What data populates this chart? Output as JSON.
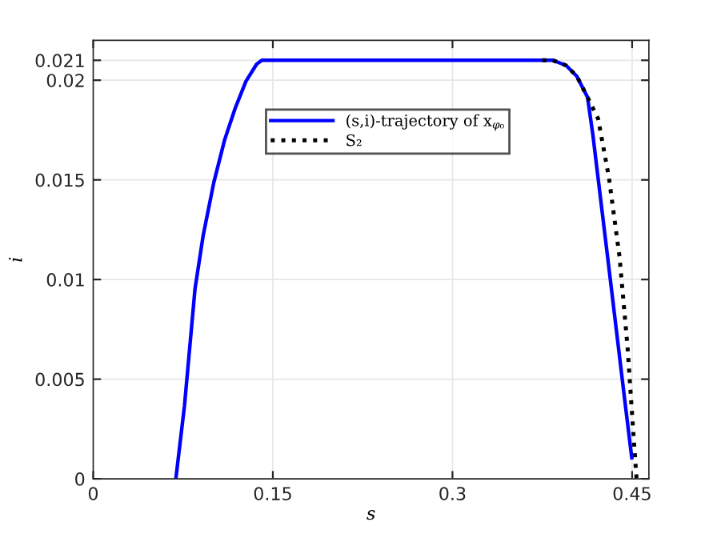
{
  "chart_data": {
    "type": "line",
    "xlabel": "s",
    "ylabel": "i",
    "series": [
      {
        "name": "(s,i)-trajectory of x$_{φ₀}$",
        "color": "#0000ff",
        "line_style": "solid",
        "x": [
          0.069,
          0.0762,
          0.085,
          0.0918,
          0.1007,
          0.1097,
          0.1186,
          0.1275,
          0.1364,
          0.1408,
          0.3838,
          0.3949,
          0.4038,
          0.4128,
          0.4172,
          0.4306,
          0.4439,
          0.4497
        ],
        "values": [
          0,
          0.00366,
          0.00953,
          0.0122,
          0.01487,
          0.017,
          0.0186,
          0.01994,
          0.0208,
          0.021,
          0.021,
          0.02074,
          0.0202,
          0.01914,
          0.01727,
          0.0106,
          0.00392,
          0.00106
        ]
      },
      {
        "name": "S₂",
        "color": "#000000",
        "line_style": "dotted",
        "x": [
          0.375,
          0.3838,
          0.3949,
          0.4038,
          0.4128,
          0.4216,
          0.4306,
          0.4395,
          0.4462,
          0.4507,
          0.4537
        ],
        "values": [
          0.021,
          0.021,
          0.02074,
          0.0202,
          0.01914,
          0.01807,
          0.01513,
          0.01113,
          0.00659,
          0.00259,
          0
        ]
      }
    ],
    "xlim": [
      0,
      0.464
    ],
    "ylim": [
      0,
      0.022
    ],
    "xticks": [
      0,
      0.15,
      0.3,
      0.45
    ],
    "yticks": [
      0,
      0.005,
      0.01,
      0.015,
      0.02,
      0.021
    ],
    "grid": true,
    "legend": "top",
    "marker": "none"
  }
}
